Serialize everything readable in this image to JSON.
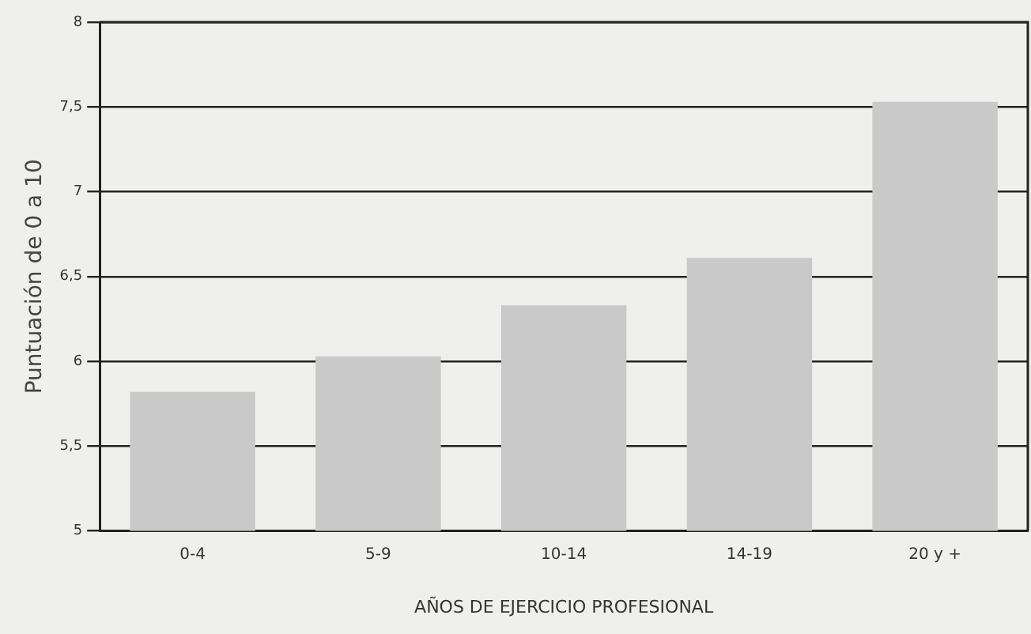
{
  "chart_data": {
    "type": "bar",
    "xlabel": "AÑOS DE EJERCICIO PROFESIONAL",
    "ylabel": "Puntuación de 0 a 10",
    "categories": [
      "0-4",
      "5-9",
      "10-14",
      "14-19",
      "20 y +"
    ],
    "values": [
      5.82,
      6.03,
      6.33,
      6.61,
      7.53
    ],
    "color": "#c9c9c9",
    "ylim": [
      5,
      8
    ],
    "yticks": [
      5,
      {
        "value": 5.5,
        "label": "5,5"
      },
      6,
      {
        "value": 6.5,
        "label": "6,5"
      },
      7,
      {
        "value": 7.5,
        "label": "7,5"
      },
      8
    ],
    "grid": "y",
    "legend": false
  }
}
